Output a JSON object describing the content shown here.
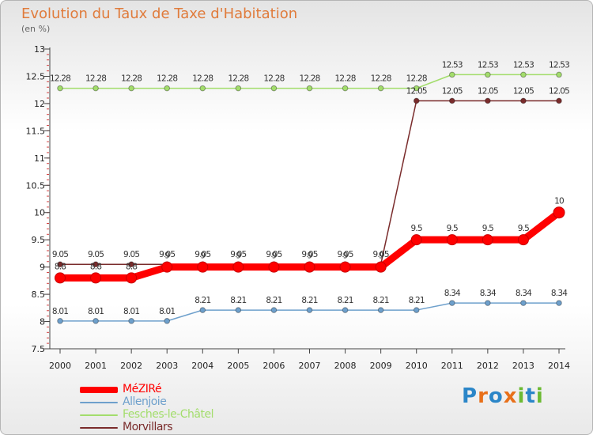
{
  "chart_data": {
    "type": "line",
    "title": "Evolution du Taux de Taxe d'Habitation",
    "ylabel": "(en %)",
    "categories": [
      "2000",
      "2001",
      "2002",
      "2003",
      "2004",
      "2005",
      "2006",
      "2007",
      "2008",
      "2009",
      "2010",
      "2011",
      "2012",
      "2013",
      "2014"
    ],
    "ylim": [
      7.5,
      13
    ],
    "yticks": [
      7.5,
      8,
      8.5,
      9,
      9.5,
      10,
      10.5,
      11,
      11.5,
      12,
      12.5,
      13
    ],
    "ytick_labels": [
      "7.5",
      "8",
      "8.5",
      "9",
      "9.5",
      "10",
      "10.5",
      "11",
      "11.5",
      "12",
      "12.5",
      "13"
    ],
    "grid": false,
    "legend_placement": "bottom-left",
    "series": [
      {
        "name": "MéZIRé",
        "color": "#ff0000",
        "values": [
          8.8,
          8.8,
          8.8,
          9,
          9,
          9,
          9,
          9,
          9,
          9,
          9.5,
          9.5,
          9.5,
          9.5,
          10
        ],
        "labels": [
          "8.8",
          "8.8",
          "8.8",
          "9",
          "9",
          "9",
          "9",
          "9",
          "9",
          "9",
          "9.5",
          "9.5",
          "9.5",
          "9.5",
          "10"
        ]
      },
      {
        "name": "Allenjoie",
        "color": "#6ea0cc",
        "values": [
          8.01,
          8.01,
          8.01,
          8.01,
          8.21,
          8.21,
          8.21,
          8.21,
          8.21,
          8.21,
          8.21,
          8.34,
          8.34,
          8.34,
          8.34
        ],
        "labels": [
          "8.01",
          "8.01",
          "8.01",
          "8.01",
          "8.21",
          "8.21",
          "8.21",
          "8.21",
          "8.21",
          "8.21",
          "8.21",
          "8.34",
          "8.34",
          "8.34",
          "8.34"
        ]
      },
      {
        "name": "Fesches-le-Châtel",
        "color": "#a3dd6c",
        "values": [
          12.28,
          12.28,
          12.28,
          12.28,
          12.28,
          12.28,
          12.28,
          12.28,
          12.28,
          12.28,
          12.28,
          12.53,
          12.53,
          12.53,
          12.53
        ],
        "labels": [
          "12.28",
          "12.28",
          "12.28",
          "12.28",
          "12.28",
          "12.28",
          "12.28",
          "12.28",
          "12.28",
          "12.28",
          "12.28",
          "12.53",
          "12.53",
          "12.53",
          "12.53"
        ]
      },
      {
        "name": "Morvillars",
        "color": "#7a2c2c",
        "values": [
          9.05,
          9.05,
          9.05,
          9.05,
          9.05,
          9.05,
          9.05,
          9.05,
          9.05,
          9.05,
          12.05,
          12.05,
          12.05,
          12.05,
          12.05
        ],
        "labels": [
          "9.05",
          "9.05",
          "9.05",
          "9.05",
          "9.05",
          "9.05",
          "9.05",
          "9.05",
          "9.05",
          "9.05",
          "12.05",
          "12.05",
          "12.05",
          "12.05",
          "12.05"
        ]
      }
    ]
  },
  "legend": {
    "items": [
      {
        "label": "MéZIRé",
        "color": "#ff0000"
      },
      {
        "label": "Allenjoie",
        "color": "#6ea0cc"
      },
      {
        "label": "Fesches-le-Châtel",
        "color": "#a3dd6c"
      },
      {
        "label": "Morvillars",
        "color": "#7a2c2c"
      }
    ]
  },
  "brand": {
    "text": "Proxiti",
    "colors": [
      "#2b86c8",
      "#e8701a",
      "#2b86c8",
      "#e8701a",
      "#6cba33",
      "#2b86c8",
      "#6cba33"
    ]
  }
}
